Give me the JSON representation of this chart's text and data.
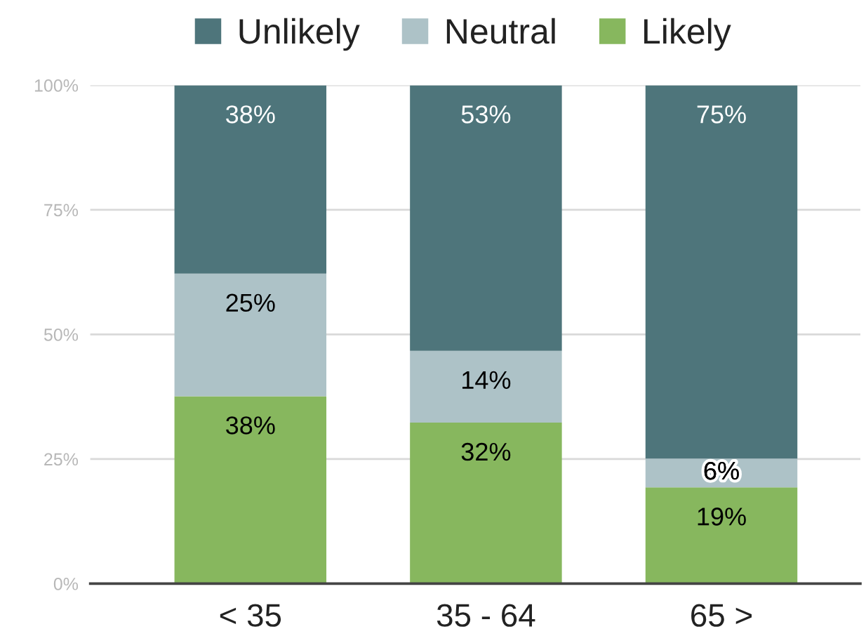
{
  "chart_data": {
    "type": "bar",
    "stacked": true,
    "categories": [
      "< 35",
      "35 - 64",
      "65 >"
    ],
    "series": [
      {
        "name": "Likely",
        "color": "#87b75e",
        "values": [
          37.6,
          32.3,
          19.3
        ],
        "value_labels": [
          "38%",
          "32%",
          "19%"
        ]
      },
      {
        "name": "Neutral",
        "color": "#adc2c7",
        "values": [
          24.6,
          14.4,
          5.8
        ],
        "value_labels": [
          "25%",
          "14%",
          "6%"
        ]
      },
      {
        "name": "Unlikely",
        "color": "#4e757b",
        "values": [
          37.8,
          53.3,
          74.9
        ],
        "value_labels": [
          "38%",
          "53%",
          "75%"
        ]
      }
    ],
    "ylim": [
      0,
      100
    ],
    "yticks": [
      {
        "value": 0,
        "label": "0%"
      },
      {
        "value": 25,
        "label": "25%"
      },
      {
        "value": 50,
        "label": "50%"
      },
      {
        "value": 75,
        "label": "75%"
      },
      {
        "value": 100,
        "label": "100%"
      }
    ],
    "grid": "y",
    "legend": "top"
  }
}
